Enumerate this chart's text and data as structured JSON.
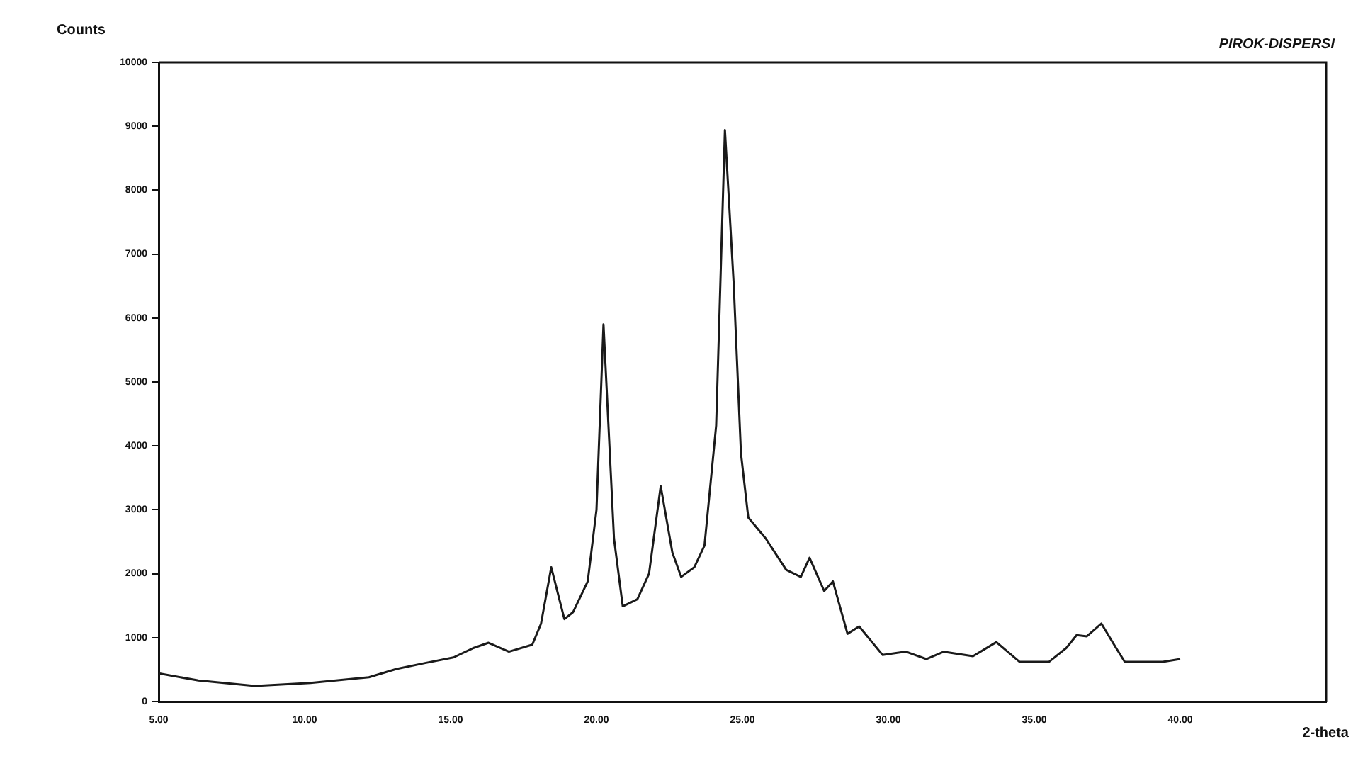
{
  "chart_data": {
    "type": "line",
    "title": "PIROK-DISPERSI",
    "xlabel": "2-theta",
    "ylabel": "Counts",
    "x": [
      5,
      6.36,
      8.3,
      10.2,
      12.2,
      13.15,
      14.1,
      15.1,
      15.8,
      16.3,
      17,
      17.8,
      18.1,
      18.45,
      18.9,
      19.2,
      19.7,
      20,
      20.24,
      20.6,
      20.9,
      21.4,
      21.8,
      22.2,
      22.6,
      22.9,
      23.35,
      23.7,
      24.1,
      24.4,
      24.7,
      24.95,
      25.2,
      25.8,
      26.5,
      27,
      27.3,
      27.8,
      28.1,
      28.6,
      29,
      29.8,
      30.6,
      31.3,
      31.9,
      32.9,
      33.7,
      34.5,
      35.5,
      36.1,
      36.45,
      36.8,
      37.3,
      37.8,
      38.1,
      39.4,
      40
    ],
    "values": [
      440,
      330,
      245,
      290,
      380,
      510,
      600,
      690,
      840,
      920,
      780,
      890,
      1220,
      2100,
      1290,
      1400,
      1880,
      3000,
      5900,
      2550,
      1490,
      1600,
      2000,
      3370,
      2330,
      1950,
      2100,
      2440,
      4320,
      8940,
      6540,
      3880,
      2880,
      2550,
      2060,
      1950,
      2250,
      1730,
      1880,
      1060,
      1175,
      730,
      780,
      665,
      780,
      710,
      930,
      620,
      620,
      840,
      1040,
      1020,
      1220,
      840,
      620,
      620,
      665
    ],
    "color": "#1a1a1a",
    "marker": "none",
    "line_style": "solid",
    "legend": false,
    "xlim": [
      5,
      45
    ],
    "xticks": [
      {
        "value": 5,
        "label": "5.00"
      },
      {
        "value": 10,
        "label": "10.00"
      },
      {
        "value": 15,
        "label": "15.00"
      },
      {
        "value": 20,
        "label": "20.00"
      },
      {
        "value": 25,
        "label": "25.00"
      },
      {
        "value": 30,
        "label": "30.00"
      },
      {
        "value": 35,
        "label": "35.00"
      },
      {
        "value": 40,
        "label": "40.00"
      }
    ],
    "ylim": [
      0,
      10000
    ],
    "yticks": [
      0,
      1000,
      2000,
      3000,
      4000,
      5000,
      6000,
      7000,
      8000,
      9000,
      10000
    ]
  }
}
